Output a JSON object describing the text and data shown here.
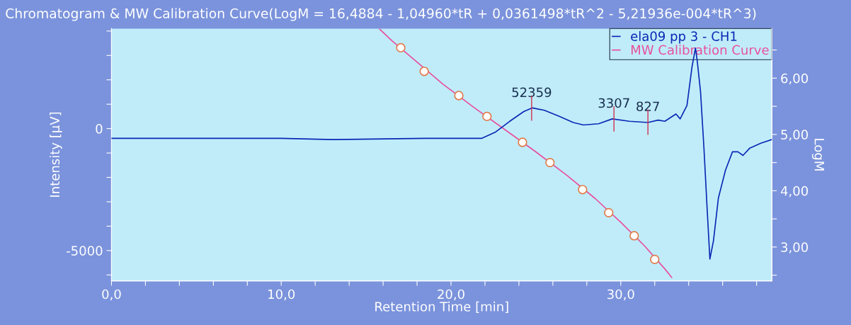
{
  "chart_data": {
    "type": "line",
    "title": "Chromatogram & MW Calibration Curve(LogM = 16,4884 - 1,04960*tR + 0,0361498*tR^2 - 5,21936e-004*tR^3)",
    "xlabel": "Retention Time [min]",
    "ylabel": "Intensity [µV]",
    "y2label": "LogM",
    "xlim": [
      0,
      38.9
    ],
    "ylim": [
      -6240,
      4100
    ],
    "y2lim": [
      2.4,
      6.88
    ],
    "xticks": [
      {
        "value": 0,
        "label": "0,0"
      },
      {
        "value": 2,
        "label": null
      },
      {
        "value": 4,
        "label": null
      },
      {
        "value": 6,
        "label": null
      },
      {
        "value": 8,
        "label": null
      },
      {
        "value": 10,
        "label": "10,0"
      },
      {
        "value": 12,
        "label": null
      },
      {
        "value": 14,
        "label": null
      },
      {
        "value": 16,
        "label": null
      },
      {
        "value": 18,
        "label": null
      },
      {
        "value": 20,
        "label": "20,0"
      },
      {
        "value": 22,
        "label": null
      },
      {
        "value": 24,
        "label": null
      },
      {
        "value": 26,
        "label": null
      },
      {
        "value": 28,
        "label": null
      },
      {
        "value": 30,
        "label": "30,0"
      },
      {
        "value": 32,
        "label": null
      },
      {
        "value": 34,
        "label": null
      },
      {
        "value": 36,
        "label": null
      },
      {
        "value": 38,
        "label": null
      }
    ],
    "yticks": [
      {
        "value": -6000,
        "label": null
      },
      {
        "value": -5000,
        "label": "-5000"
      },
      {
        "value": -4000,
        "label": null
      },
      {
        "value": -3000,
        "label": null
      },
      {
        "value": -2000,
        "label": null
      },
      {
        "value": -1000,
        "label": null
      },
      0,
      {
        "value": 1000,
        "label": null
      },
      {
        "value": 2000,
        "label": null
      },
      {
        "value": 3000,
        "label": null
      },
      {
        "value": 4000,
        "label": null
      }
    ],
    "y2ticks": [
      {
        "value": 2.5,
        "label": null
      },
      {
        "value": 3,
        "label": "3,00"
      },
      {
        "value": 3.5,
        "label": null
      },
      {
        "value": 4,
        "label": "4,00"
      },
      {
        "value": 4.5,
        "label": null
      },
      {
        "value": 5,
        "label": "5,00"
      },
      {
        "value": 5.5,
        "label": null
      },
      {
        "value": 6,
        "label": "6,00"
      },
      {
        "value": 6.5,
        "label": null
      }
    ],
    "grid": false,
    "legend": "top right",
    "series": [
      {
        "name": "ela09 pp 3 - CH1",
        "color": "#0a28b4",
        "marker": "none",
        "x": [
          0,
          10,
          13,
          18.5,
          21.8,
          22.6,
          23.46,
          24.29,
          24.8,
          25.5,
          26.4,
          27.2,
          27.8,
          28.7,
          29.5,
          30.5,
          31.6,
          32.2,
          32.6,
          33.25,
          33.5,
          33.9,
          34.2,
          34.4,
          34.5,
          34.7,
          34.9,
          35.1,
          35.25,
          35.46,
          35.75,
          36.17,
          36.58,
          36.9,
          37.2,
          37.6,
          38.25,
          38.9
        ],
        "values": [
          -400,
          -400,
          -450,
          -400,
          -400,
          -150,
          300,
          700,
          850,
          750,
          500,
          250,
          150,
          200,
          400,
          300,
          250,
          350,
          300,
          600,
          400,
          950,
          2550,
          3300,
          2800,
          1500,
          -800,
          -3450,
          -5350,
          -4600,
          -2850,
          -1700,
          -950,
          -950,
          -1100,
          -800,
          -600,
          -450
        ]
      },
      {
        "name": "MW Calibration Curve",
        "color": "#e8509a",
        "type": "line",
        "axis": "y2",
        "marker": "none",
        "x": [
          15.8,
          16.5,
          19.5,
          21.3,
          23.2,
          25.0,
          26.8,
          28.5,
          30.0,
          31.4,
          32.6,
          33.0
        ],
        "values": [
          6.87,
          6.67,
          5.9,
          5.49,
          5.08,
          4.69,
          4.28,
          3.86,
          3.44,
          3.02,
          2.61,
          2.46
        ]
      },
      {
        "color": "#e07a48",
        "type": "scatter",
        "axis": "y2",
        "marker": "circle",
        "x": [
          17.04,
          18.42,
          20.46,
          22.12,
          24.21,
          25.83,
          27.75,
          29.29,
          30.79,
          32.0
        ],
        "values": [
          6.54,
          6.12,
          5.69,
          5.32,
          4.86,
          4.5,
          4.02,
          3.61,
          3.2,
          2.78
        ]
      }
    ],
    "annotations": [
      {
        "text": "52359",
        "x": 24.75,
        "y": 840
      },
      {
        "text": "3307",
        "x": 29.6,
        "y": 400
      },
      {
        "text": "827",
        "x": 31.6,
        "y": 262
      }
    ]
  }
}
